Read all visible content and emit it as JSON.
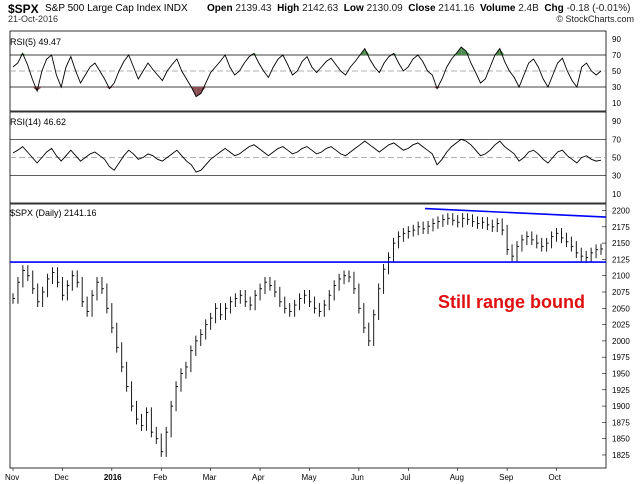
{
  "header": {
    "symbol": "$SPX",
    "name": "S&P 500 Large Cap Index INDX",
    "date": "21-Oct-2016",
    "stats": [
      {
        "k": "Open",
        "v": "2139.43"
      },
      {
        "k": "High",
        "v": "2142.63"
      },
      {
        "k": "Low",
        "v": "2130.09"
      },
      {
        "k": "Close",
        "v": "2141.16"
      },
      {
        "k": "Volume",
        "v": "2.4B"
      },
      {
        "k": "Chg",
        "v": "-0.18 (-0.01%)"
      }
    ],
    "logo": "© StockCharts.com"
  },
  "panels": {
    "rsi5_label": "RSI(5) 49.47",
    "rsi14_label": "RSI(14) 46.62",
    "price_label": "$SPX (Daily) 2141.16"
  },
  "annotation": "Still range bound",
  "colors": {
    "upper_line": "#0000ff",
    "lower_line": "#0000ff",
    "overbought": "#4e8a4e",
    "oversold": "#8a4e55",
    "annotation": "#e01010"
  },
  "chart_data": [
    {
      "type": "line",
      "title": "RSI(5) 49.47",
      "ylim": [
        0,
        100
      ],
      "yticks": [
        10,
        30,
        50,
        70,
        90
      ],
      "reference_lines": [
        30,
        50,
        70
      ],
      "shading": {
        "above": 70,
        "below": 30
      },
      "values": [
        55,
        60,
        72,
        58,
        40,
        25,
        50,
        65,
        70,
        45,
        30,
        55,
        68,
        50,
        35,
        45,
        55,
        60,
        50,
        40,
        28,
        35,
        50,
        62,
        70,
        55,
        40,
        50,
        60,
        52,
        45,
        38,
        50,
        58,
        65,
        50,
        40,
        30,
        18,
        22,
        35,
        48,
        55,
        62,
        70,
        55,
        45,
        50,
        60,
        68,
        72,
        60,
        50,
        42,
        55,
        65,
        70,
        58,
        45,
        50,
        62,
        68,
        55,
        48,
        55,
        62,
        66,
        58,
        50,
        45,
        55,
        62,
        70,
        78,
        65,
        55,
        48,
        60,
        68,
        72,
        60,
        50,
        55,
        65,
        70,
        62,
        50,
        45,
        28,
        40,
        55,
        65,
        72,
        80,
        75,
        60,
        48,
        35,
        40,
        55,
        70,
        78,
        62,
        50,
        42,
        30,
        45,
        60,
        65,
        55,
        40,
        30,
        45,
        60,
        66,
        50,
        38,
        30,
        55,
        60,
        50,
        45,
        50
      ]
    },
    {
      "type": "line",
      "title": "RSI(14) 46.62",
      "ylim": [
        0,
        100
      ],
      "yticks": [
        10,
        30,
        50,
        70,
        90
      ],
      "reference_lines": [
        30,
        50,
        70
      ],
      "values": [
        55,
        58,
        62,
        56,
        50,
        44,
        50,
        56,
        60,
        52,
        46,
        52,
        58,
        52,
        46,
        50,
        54,
        56,
        52,
        48,
        40,
        36,
        44,
        52,
        58,
        54,
        48,
        50,
        54,
        52,
        48,
        46,
        50,
        54,
        58,
        52,
        46,
        42,
        34,
        36,
        42,
        48,
        52,
        56,
        60,
        56,
        52,
        54,
        58,
        62,
        64,
        60,
        56,
        52,
        56,
        60,
        62,
        58,
        54,
        56,
        60,
        62,
        58,
        54,
        56,
        60,
        62,
        58,
        54,
        52,
        56,
        60,
        64,
        68,
        64,
        60,
        56,
        60,
        64,
        66,
        62,
        58,
        60,
        64,
        66,
        62,
        58,
        54,
        42,
        48,
        56,
        62,
        66,
        70,
        68,
        64,
        58,
        52,
        54,
        58,
        64,
        68,
        62,
        58,
        54,
        46,
        50,
        56,
        58,
        54,
        48,
        44,
        50,
        56,
        58,
        52,
        48,
        44,
        50,
        52,
        48,
        46,
        47
      ]
    },
    {
      "type": "bar",
      "title": "$SPX (Daily) 2141.16",
      "ylim": [
        1805,
        2210
      ],
      "yticks": [
        1825,
        1850,
        1875,
        1900,
        1925,
        1950,
        1975,
        2000,
        2025,
        2050,
        2075,
        2100,
        2125,
        2150,
        2175,
        2200
      ],
      "xlabels": [
        "Nov",
        "Dec",
        "2016",
        "Feb",
        "Mar",
        "Apr",
        "May",
        "Jun",
        "Jul",
        "Aug",
        "Sep",
        "Oct"
      ],
      "xlabel_index": [
        0,
        10,
        20,
        30,
        40,
        50,
        60,
        70,
        80,
        90,
        100,
        110
      ],
      "bold_xlabels": [
        "2016"
      ],
      "close": [
        2065,
        2090,
        2108,
        2100,
        2080,
        2060,
        2075,
        2095,
        2105,
        2090,
        2070,
        2085,
        2100,
        2090,
        2060,
        2045,
        2070,
        2090,
        2080,
        2050,
        2020,
        1990,
        1960,
        1930,
        1900,
        1880,
        1870,
        1890,
        1860,
        1850,
        1830,
        1860,
        1900,
        1930,
        1950,
        1960,
        1985,
        2000,
        2010,
        2025,
        2035,
        2050,
        2040,
        2050,
        2060,
        2065,
        2070,
        2060,
        2055,
        2070,
        2080,
        2090,
        2085,
        2075,
        2060,
        2050,
        2045,
        2055,
        2065,
        2070,
        2060,
        2050,
        2045,
        2055,
        2070,
        2085,
        2095,
        2100,
        2098,
        2080,
        2050,
        2020,
        2000,
        2040,
        2080,
        2110,
        2128,
        2150,
        2160,
        2165,
        2168,
        2170,
        2175,
        2172,
        2176,
        2180,
        2183,
        2186,
        2188,
        2185,
        2182,
        2188,
        2186,
        2183,
        2180,
        2182,
        2178,
        2175,
        2180,
        2170,
        2140,
        2130,
        2145,
        2155,
        2160,
        2155,
        2150,
        2145,
        2150,
        2160,
        2165,
        2158,
        2152,
        2145,
        2135,
        2130,
        2128,
        2135,
        2140,
        2141
      ]
    }
  ]
}
